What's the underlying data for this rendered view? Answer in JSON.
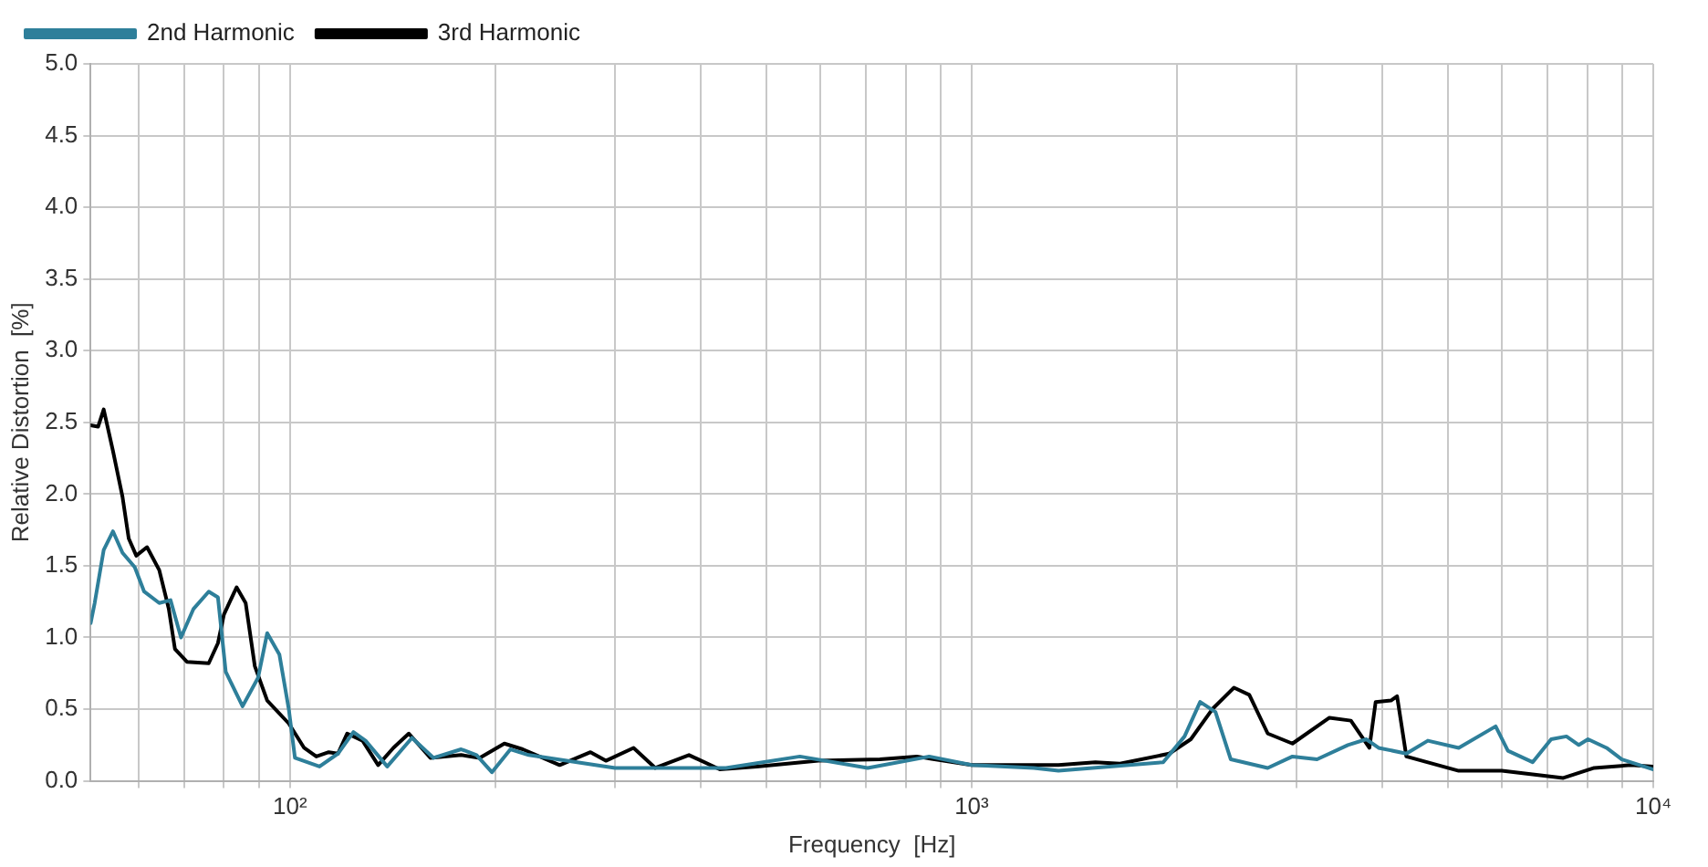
{
  "chart_data": {
    "type": "line",
    "xlabel": "Frequency  [Hz]",
    "ylabel": "Relative Distortion  [%]",
    "log": "x",
    "grid": true,
    "legend": "top left",
    "xlim": [
      51,
      10000
    ],
    "ylim": [
      0,
      5
    ],
    "xticks": [
      {
        "value": 60,
        "label": null
      },
      {
        "value": 70,
        "label": null
      },
      {
        "value": 80,
        "label": null
      },
      {
        "value": 90,
        "label": null
      },
      {
        "value": 100,
        "label": "10²"
      },
      {
        "value": 200,
        "label": null
      },
      {
        "value": 300,
        "label": null
      },
      {
        "value": 400,
        "label": null
      },
      {
        "value": 500,
        "label": null
      },
      {
        "value": 600,
        "label": null
      },
      {
        "value": 700,
        "label": null
      },
      {
        "value": 800,
        "label": null
      },
      {
        "value": 900,
        "label": null
      },
      {
        "value": 1000,
        "label": "10³"
      },
      {
        "value": 2000,
        "label": null
      },
      {
        "value": 3000,
        "label": null
      },
      {
        "value": 4000,
        "label": null
      },
      {
        "value": 5000,
        "label": null
      },
      {
        "value": 6000,
        "label": null
      },
      {
        "value": 7000,
        "label": null
      },
      {
        "value": 8000,
        "label": null
      },
      {
        "value": 9000,
        "label": null
      },
      {
        "value": 10000,
        "label": "10⁴"
      }
    ],
    "yticks": [
      {
        "value": 0,
        "label": "0.0"
      },
      {
        "value": 0.5,
        "label": "0.5"
      },
      {
        "value": 1,
        "label": "1.0"
      },
      {
        "value": 1.5,
        "label": "1.5"
      },
      {
        "value": 2,
        "label": "2.0"
      },
      {
        "value": 2.5,
        "label": "2.5"
      },
      {
        "value": 3,
        "label": "3.0"
      },
      {
        "value": 3.5,
        "label": "3.5"
      },
      {
        "value": 4,
        "label": "4.0"
      },
      {
        "value": 4.5,
        "label": "4.5"
      },
      {
        "value": 5,
        "label": "5.0"
      }
    ],
    "series": [
      {
        "name": "2nd Harmonic",
        "color": "#2e7f9a",
        "x": [
          51,
          51.7,
          53.3,
          55.0,
          56.8,
          59.2,
          61.1,
          64.3,
          66.8,
          69.2,
          72.2,
          76.0,
          78.4,
          80.5,
          85.2,
          89.8,
          92.6,
          96.5,
          99.6,
          101.7,
          110.5,
          117.6,
          123.9,
          129.1,
          138.9,
          151.0,
          162.4,
          178.3,
          187.8,
          197.8,
          210.6,
          224.0,
          299.9,
          436.1,
          559.8,
          703.9,
          866.4,
          1000,
          1234,
          1341,
          1910,
          2053,
          2164,
          2279,
          2400,
          2719,
          2956,
          3212,
          3565,
          3795,
          3954,
          4343,
          4670,
          5183,
          5872,
          6120,
          6653,
          7083,
          7458,
          7777,
          8023,
          8540,
          8994,
          10000
        ],
        "values": [
          1.1,
          1.24,
          1.61,
          1.74,
          1.59,
          1.49,
          1.32,
          1.24,
          1.26,
          1.0,
          1.2,
          1.32,
          1.28,
          0.76,
          0.52,
          0.72,
          1.03,
          0.88,
          0.5,
          0.16,
          0.1,
          0.19,
          0.34,
          0.28,
          0.1,
          0.3,
          0.16,
          0.22,
          0.18,
          0.06,
          0.22,
          0.18,
          0.09,
          0.09,
          0.17,
          0.09,
          0.17,
          0.11,
          0.09,
          0.07,
          0.13,
          0.31,
          0.55,
          0.48,
          0.15,
          0.09,
          0.17,
          0.15,
          0.25,
          0.29,
          0.23,
          0.19,
          0.28,
          0.23,
          0.38,
          0.21,
          0.13,
          0.29,
          0.31,
          0.25,
          0.29,
          0.23,
          0.15,
          0.08
        ]
      },
      {
        "name": "3rd Harmonic",
        "color": "#000000",
        "x": [
          51,
          52.3,
          53.3,
          55.0,
          56.8,
          58.0,
          59.5,
          61.7,
          64.3,
          66.4,
          67.8,
          70.6,
          76.0,
          78.4,
          80.0,
          83.5,
          86.1,
          88.8,
          92.6,
          99.6,
          104.9,
          109.3,
          114.0,
          117.6,
          121.3,
          127.8,
          134.7,
          141.8,
          149.4,
          160.7,
          178.3,
          189.8,
          206.3,
          219.5,
          248.7,
          276.0,
          290.7,
          319.2,
          343.5,
          384.9,
          427.1,
          483.9,
          595.9,
          733.5,
          830.8,
          1000,
          1341,
          1519,
          1651,
          1950,
          2097,
          2255,
          2426,
          2555,
          2719,
          2956,
          3349,
          3601,
          3833,
          3915,
          4123,
          4209,
          4343,
          5183,
          5995,
          7379,
          8191,
          9280,
          10000
        ],
        "values": [
          2.48,
          2.47,
          2.59,
          2.3,
          1.98,
          1.69,
          1.57,
          1.63,
          1.47,
          1.2,
          0.92,
          0.83,
          0.82,
          0.96,
          1.16,
          1.35,
          1.24,
          0.8,
          0.56,
          0.4,
          0.23,
          0.17,
          0.2,
          0.19,
          0.33,
          0.28,
          0.11,
          0.23,
          0.33,
          0.16,
          0.18,
          0.16,
          0.26,
          0.22,
          0.11,
          0.2,
          0.14,
          0.23,
          0.09,
          0.18,
          0.08,
          0.1,
          0.14,
          0.15,
          0.17,
          0.11,
          0.11,
          0.13,
          0.12,
          0.19,
          0.29,
          0.5,
          0.65,
          0.6,
          0.33,
          0.26,
          0.44,
          0.42,
          0.23,
          0.55,
          0.56,
          0.59,
          0.17,
          0.07,
          0.07,
          0.02,
          0.09,
          0.11,
          0.1
        ]
      }
    ]
  }
}
